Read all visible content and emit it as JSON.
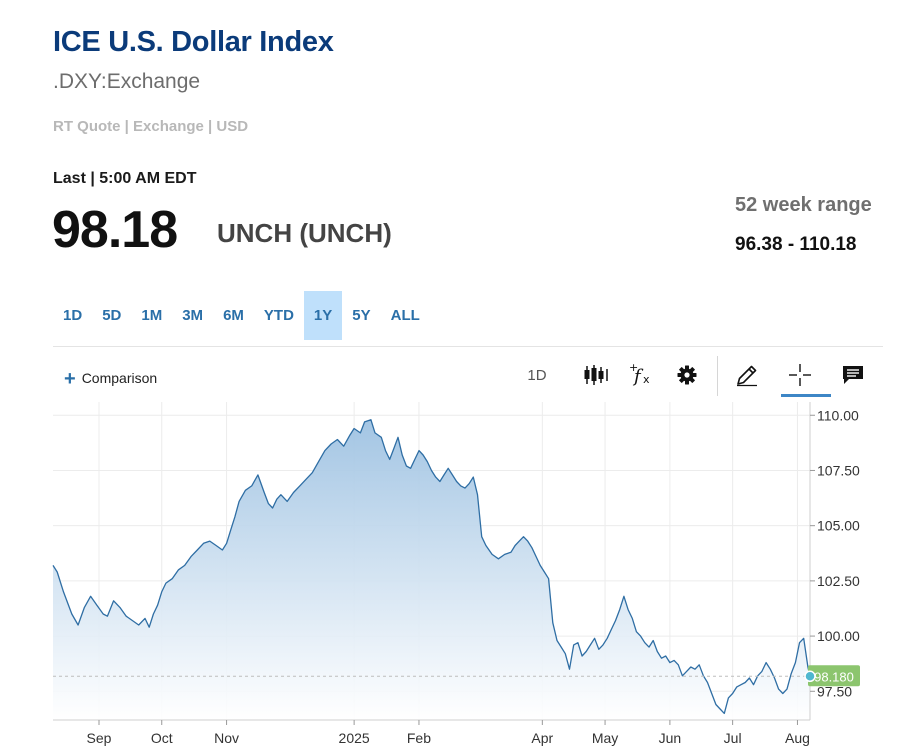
{
  "header": {
    "title": "ICE U.S. Dollar Index",
    "symbol": ".DXY:Exchange",
    "meta": "RT Quote | Exchange | USD"
  },
  "quote": {
    "last_time": "Last | 5:00 AM EDT",
    "last_price": "98.18",
    "change": "UNCH (UNCH)",
    "range_label": "52 week range",
    "range_value": "96.38 - 110.18"
  },
  "tabs": [
    {
      "label": "1D",
      "active": false
    },
    {
      "label": "5D",
      "active": false
    },
    {
      "label": "1M",
      "active": false
    },
    {
      "label": "3M",
      "active": false
    },
    {
      "label": "6M",
      "active": false
    },
    {
      "label": "YTD",
      "active": false
    },
    {
      "label": "1Y",
      "active": true
    },
    {
      "label": "5Y",
      "active": false
    },
    {
      "label": "ALL",
      "active": false
    }
  ],
  "toolbar": {
    "comparison_label": "Comparison",
    "interval_label": "1D",
    "icons": [
      "candlestick-icon",
      "function-icon",
      "gear-icon",
      "pencil-icon",
      "crosshair-icon",
      "comment-icon"
    ]
  },
  "colors": {
    "title": "#0b3b7a",
    "line": "#2f6ea4",
    "fill_top": "#9ec2e2",
    "fill_bottom": "#ffffff",
    "last_badge": "#8cc56e",
    "active_tab": "#bfe0fb",
    "accent": "#3d86c6"
  },
  "chart_data": {
    "type": "area",
    "ylim": [
      96.2,
      110.6
    ],
    "yticks": [
      110,
      107.5,
      105,
      102.5,
      100,
      97.5
    ],
    "ytick_labels": [
      "110.00",
      "107.50",
      "105.00",
      "102.50",
      "100.00",
      "97.50"
    ],
    "x_labels": [
      {
        "label": "Sep",
        "day": 17
      },
      {
        "label": "Oct",
        "day": 47
      },
      {
        "label": "Nov",
        "day": 78
      },
      {
        "label": "2025",
        "day": 139
      },
      {
        "label": "Feb",
        "day": 170
      },
      {
        "label": "Apr",
        "day": 229
      },
      {
        "label": "May",
        "day": 259
      },
      {
        "label": "Jun",
        "day": 290
      },
      {
        "label": "Jul",
        "day": 320
      },
      {
        "label": "Aug",
        "day": 351
      }
    ],
    "x_range": [
      -5,
      357
    ],
    "last_value": 98.18,
    "last_label": "98.180",
    "grid": true,
    "series": [
      {
        "points": [
          [
            -5,
            103.2
          ],
          [
            -3,
            102.9
          ],
          [
            0,
            102.0
          ],
          [
            4,
            101.0
          ],
          [
            7,
            100.5
          ],
          [
            10,
            101.3
          ],
          [
            13,
            101.8
          ],
          [
            16,
            101.4
          ],
          [
            19,
            101.0
          ],
          [
            21,
            100.9
          ],
          [
            24,
            101.6
          ],
          [
            27,
            101.3
          ],
          [
            30,
            100.9
          ],
          [
            33,
            100.7
          ],
          [
            36,
            100.5
          ],
          [
            39,
            100.8
          ],
          [
            41,
            100.4
          ],
          [
            43,
            101.0
          ],
          [
            45,
            101.4
          ],
          [
            47,
            102.0
          ],
          [
            49,
            102.4
          ],
          [
            52,
            102.6
          ],
          [
            55,
            103.0
          ],
          [
            58,
            103.2
          ],
          [
            61,
            103.6
          ],
          [
            64,
            103.9
          ],
          [
            67,
            104.2
          ],
          [
            70,
            104.3
          ],
          [
            73,
            104.1
          ],
          [
            76,
            103.9
          ],
          [
            78,
            104.2
          ],
          [
            80,
            104.8
          ],
          [
            82,
            105.4
          ],
          [
            84,
            106.1
          ],
          [
            87,
            106.6
          ],
          [
            90,
            106.8
          ],
          [
            93,
            107.3
          ],
          [
            96,
            106.5
          ],
          [
            98,
            106.0
          ],
          [
            100,
            105.8
          ],
          [
            102,
            106.2
          ],
          [
            104,
            106.4
          ],
          [
            107,
            106.1
          ],
          [
            110,
            106.5
          ],
          [
            113,
            106.8
          ],
          [
            116,
            107.1
          ],
          [
            119,
            107.4
          ],
          [
            122,
            107.9
          ],
          [
            125,
            108.4
          ],
          [
            128,
            108.7
          ],
          [
            131,
            108.9
          ],
          [
            134,
            108.6
          ],
          [
            137,
            109.1
          ],
          [
            139,
            109.4
          ],
          [
            142,
            109.2
          ],
          [
            144,
            109.7
          ],
          [
            147,
            109.8
          ],
          [
            149,
            109.2
          ],
          [
            152,
            109.0
          ],
          [
            154,
            108.4
          ],
          [
            156,
            108.0
          ],
          [
            158,
            108.5
          ],
          [
            160,
            109.0
          ],
          [
            162,
            108.2
          ],
          [
            164,
            107.7
          ],
          [
            166,
            107.6
          ],
          [
            168,
            108.0
          ],
          [
            170,
            108.4
          ],
          [
            172,
            108.2
          ],
          [
            174,
            107.9
          ],
          [
            176,
            107.5
          ],
          [
            178,
            107.2
          ],
          [
            180,
            107.0
          ],
          [
            182,
            107.3
          ],
          [
            184,
            107.6
          ],
          [
            186,
            107.3
          ],
          [
            188,
            107.0
          ],
          [
            190,
            106.8
          ],
          [
            192,
            106.7
          ],
          [
            194,
            106.9
          ],
          [
            196,
            107.2
          ],
          [
            198,
            106.4
          ],
          [
            200,
            104.5
          ],
          [
            202,
            104.1
          ],
          [
            205,
            103.7
          ],
          [
            208,
            103.5
          ],
          [
            211,
            103.7
          ],
          [
            214,
            103.8
          ],
          [
            216,
            104.1
          ],
          [
            218,
            104.3
          ],
          [
            220,
            104.5
          ],
          [
            222,
            104.3
          ],
          [
            224,
            104.0
          ],
          [
            226,
            103.6
          ],
          [
            228,
            103.2
          ],
          [
            230,
            102.9
          ],
          [
            232,
            102.6
          ],
          [
            234,
            100.6
          ],
          [
            236,
            99.8
          ],
          [
            238,
            99.5
          ],
          [
            240,
            99.2
          ],
          [
            242,
            98.5
          ],
          [
            244,
            99.6
          ],
          [
            246,
            99.7
          ],
          [
            248,
            99.1
          ],
          [
            250,
            99.3
          ],
          [
            252,
            99.6
          ],
          [
            254,
            99.9
          ],
          [
            256,
            99.4
          ],
          [
            258,
            99.6
          ],
          [
            260,
            99.9
          ],
          [
            262,
            100.3
          ],
          [
            264,
            100.7
          ],
          [
            266,
            101.2
          ],
          [
            268,
            101.8
          ],
          [
            270,
            101.2
          ],
          [
            272,
            100.8
          ],
          [
            274,
            100.2
          ],
          [
            276,
            100.0
          ],
          [
            278,
            99.7
          ],
          [
            280,
            99.5
          ],
          [
            282,
            99.8
          ],
          [
            284,
            99.3
          ],
          [
            286,
            99.0
          ],
          [
            288,
            99.1
          ],
          [
            290,
            98.8
          ],
          [
            292,
            98.9
          ],
          [
            294,
            98.7
          ],
          [
            296,
            98.2
          ],
          [
            298,
            98.4
          ],
          [
            300,
            98.6
          ],
          [
            302,
            98.5
          ],
          [
            304,
            98.7
          ],
          [
            306,
            98.2
          ],
          [
            308,
            97.9
          ],
          [
            310,
            97.4
          ],
          [
            312,
            96.9
          ],
          [
            314,
            96.7
          ],
          [
            316,
            96.5
          ],
          [
            318,
            97.2
          ],
          [
            320,
            97.4
          ],
          [
            322,
            97.7
          ],
          [
            324,
            97.8
          ],
          [
            326,
            97.9
          ],
          [
            328,
            98.1
          ],
          [
            330,
            97.8
          ],
          [
            332,
            98.2
          ],
          [
            334,
            98.4
          ],
          [
            336,
            98.8
          ],
          [
            338,
            98.5
          ],
          [
            340,
            98.1
          ],
          [
            342,
            97.6
          ],
          [
            344,
            97.4
          ],
          [
            346,
            97.6
          ],
          [
            348,
            98.3
          ],
          [
            350,
            98.8
          ],
          [
            352,
            99.7
          ],
          [
            354,
            99.9
          ],
          [
            356,
            98.6
          ],
          [
            357,
            98.18
          ]
        ]
      }
    ]
  }
}
